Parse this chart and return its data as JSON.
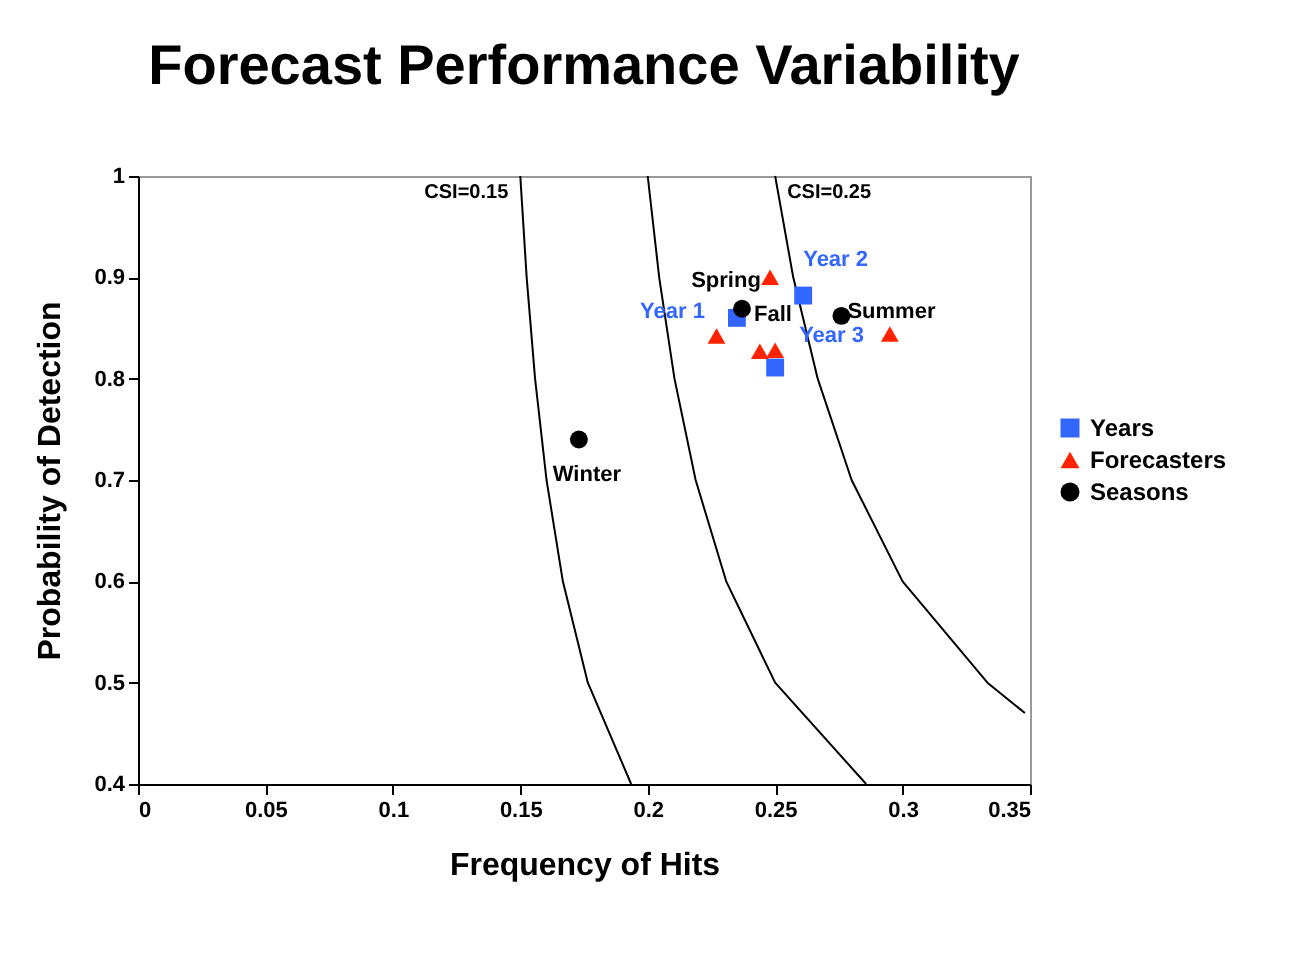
{
  "chart_data": {
    "type": "scatter",
    "title": "Forecast Performance Variability",
    "xlabel": "Frequency of Hits",
    "ylabel": "Probability of Detection",
    "xlim": [
      0,
      0.35
    ],
    "xticks": [
      0,
      0.05,
      0.1,
      0.15,
      0.2,
      0.25,
      0.3,
      0.35
    ],
    "ylim": [
      0.4,
      1
    ],
    "yticks": [
      0.4,
      0.5,
      0.6,
      0.7,
      0.8,
      0.9,
      1
    ],
    "grid": false,
    "legend": "right",
    "series": [
      {
        "type": "line",
        "color": "#000000",
        "x": [
          0.15,
          0.1525,
          0.1558,
          0.1603,
          0.1667,
          0.1765,
          0.1935
        ],
        "values": [
          1,
          0.9,
          0.8,
          0.7,
          0.6,
          0.5,
          0.4
        ]
      },
      {
        "type": "line",
        "color": "#000000",
        "x": [
          0.2,
          0.2045,
          0.2105,
          0.2188,
          0.2308,
          0.25,
          0.2857
        ],
        "values": [
          1,
          0.9,
          0.8,
          0.7,
          0.6,
          0.5,
          0.4
        ]
      },
      {
        "type": "line",
        "color": "#000000",
        "x": [
          0.25,
          0.2571,
          0.2667,
          0.28,
          0.3,
          0.3333,
          0.348
        ],
        "values": [
          1,
          0.9,
          0.8,
          0.7,
          0.6,
          0.5,
          0.47
        ]
      },
      {
        "name": "Years",
        "marker": "square",
        "color": "#3366ff",
        "x": [
          0.235,
          0.261,
          0.25
        ],
        "values": [
          0.86,
          0.882,
          0.811
        ]
      },
      {
        "name": "Forecasters",
        "marker": "triangle",
        "color": "#ff2200",
        "x": [
          0.248,
          0.227,
          0.244,
          0.25,
          0.295
        ],
        "values": [
          0.9,
          0.842,
          0.827,
          0.828,
          0.844
        ]
      },
      {
        "name": "Seasons",
        "marker": "circle",
        "color": "#000000",
        "x": [
          0.237,
          0.276,
          0.173
        ],
        "values": [
          0.869,
          0.862,
          0.74
        ]
      }
    ],
    "annotations": [
      {
        "text": "CSI=0.15",
        "x": 0.15,
        "y": 1
      },
      {
        "text": "CSI=0.25",
        "x": 0.25,
        "y": 1
      },
      {
        "text": "Year 1",
        "x": 0.235,
        "y": 0.86
      },
      {
        "text": "Year 2",
        "x": 0.261,
        "y": 0.882
      },
      {
        "text": "Year 3",
        "x": 0.25,
        "y": 0.811
      },
      {
        "text": "Spring",
        "x": 0.237,
        "y": 0.869
      },
      {
        "text": "Fall",
        "x": 0.237,
        "y": 0.869
      },
      {
        "text": "Summer",
        "x": 0.276,
        "y": 0.862
      },
      {
        "text": "Winter",
        "x": 0.173,
        "y": 0.74
      }
    ]
  }
}
